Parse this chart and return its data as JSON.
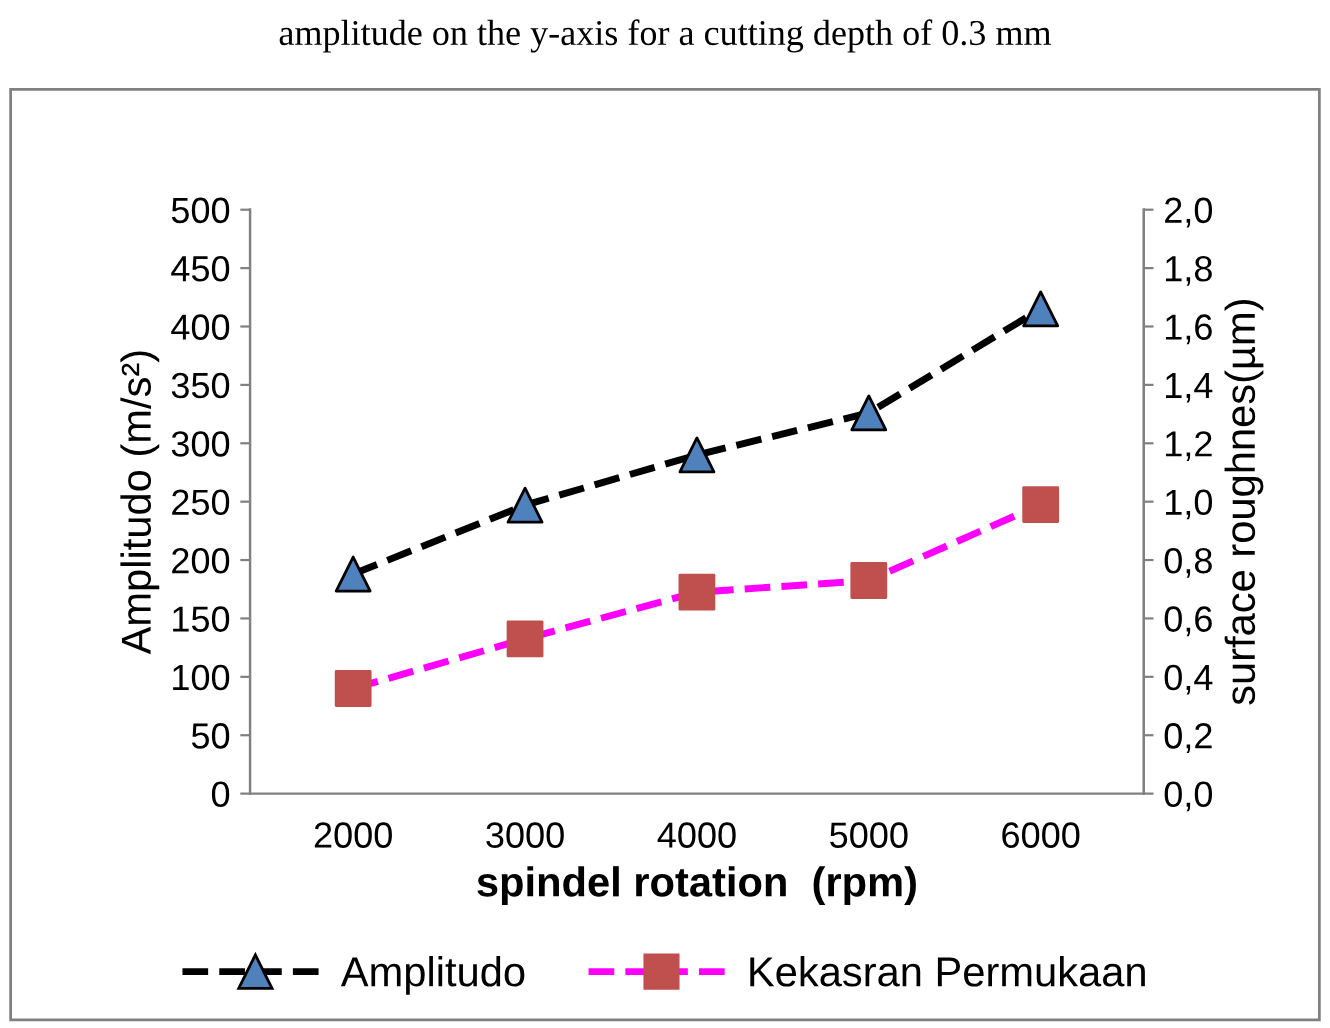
{
  "chart_data": {
    "type": "line",
    "title": "amplitude on the y-axis for a cutting depth of 0.3 mm",
    "xlabel": "spindel rotation  (rpm)",
    "ylabel": "Amplitudo (m/s²)",
    "y2label": "surface roughnes(µm)",
    "categories": [
      "2000",
      "3000",
      "4000",
      "5000",
      "6000"
    ],
    "series": [
      {
        "name": "Amplitudo",
        "color": "#000000",
        "colors": [
          "#4f81bd",
          "#4f81bd",
          "#4f81bd",
          "#4f81bd",
          "#4f81bd"
        ],
        "marker": "triangle",
        "values": [
          188,
          247,
          290,
          326,
          415
        ]
      },
      {
        "name": "Kekasran Permukaan",
        "color": "#ff00ff",
        "colors": [
          "#c0504d",
          "#c0504d",
          "#c0504d",
          "#c0504d",
          "#c0504d"
        ],
        "marker": "square",
        "axis": "y2",
        "values": [
          0.36,
          0.53,
          0.69,
          0.73,
          0.99
        ]
      }
    ],
    "line_style": "dashed",
    "legend": "bottom",
    "grid": false,
    "ylim": [
      0,
      500
    ],
    "yticks": [
      0,
      50,
      100,
      150,
      200,
      250,
      300,
      350,
      400,
      450,
      500
    ],
    "y2lim": [
      0,
      2
    ],
    "y2ticks": [
      {
        "value": 0,
        "label": "0,0"
      },
      {
        "value": 0.2,
        "label": "0,2"
      },
      {
        "value": 0.4,
        "label": "0,4"
      },
      {
        "value": 0.6,
        "label": "0,6"
      },
      {
        "value": 0.8,
        "label": "0,8"
      },
      {
        "value": 1.0,
        "label": "1,0"
      },
      {
        "value": 1.2,
        "label": "1,2"
      },
      {
        "value": 1.4,
        "label": "1,4"
      },
      {
        "value": 1.6,
        "label": "1,6"
      },
      {
        "value": 1.8,
        "label": "1,8"
      },
      {
        "value": 2.0,
        "label": "2,0"
      }
    ]
  }
}
